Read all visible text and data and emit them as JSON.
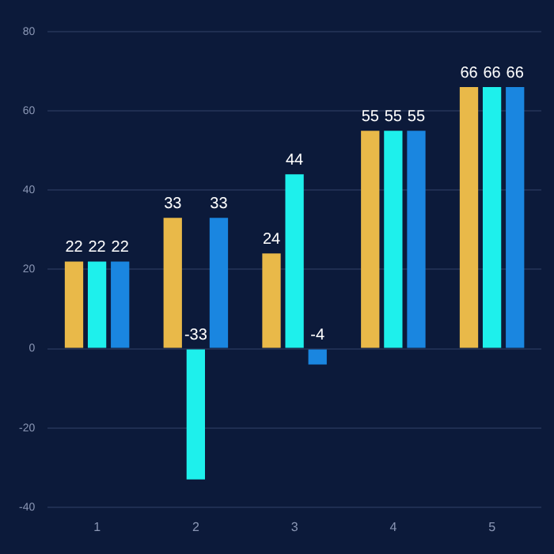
{
  "chart_data": {
    "type": "bar",
    "categories": [
      "1",
      "2",
      "3",
      "4",
      "5"
    ],
    "series": [
      {
        "color": "#e9b949",
        "values": [
          22,
          33,
          24,
          55,
          66
        ]
      },
      {
        "color": "#1ef0ec",
        "values": [
          22,
          -33,
          44,
          55,
          66
        ]
      },
      {
        "color": "#1a86e0",
        "values": [
          22,
          33,
          -4,
          55,
          66
        ]
      }
    ],
    "ylim": [
      -40,
      80
    ],
    "yticks": [
      -40,
      -20,
      0,
      20,
      40,
      60,
      80
    ],
    "grid": "y",
    "data_labels": true,
    "legend": false
  }
}
